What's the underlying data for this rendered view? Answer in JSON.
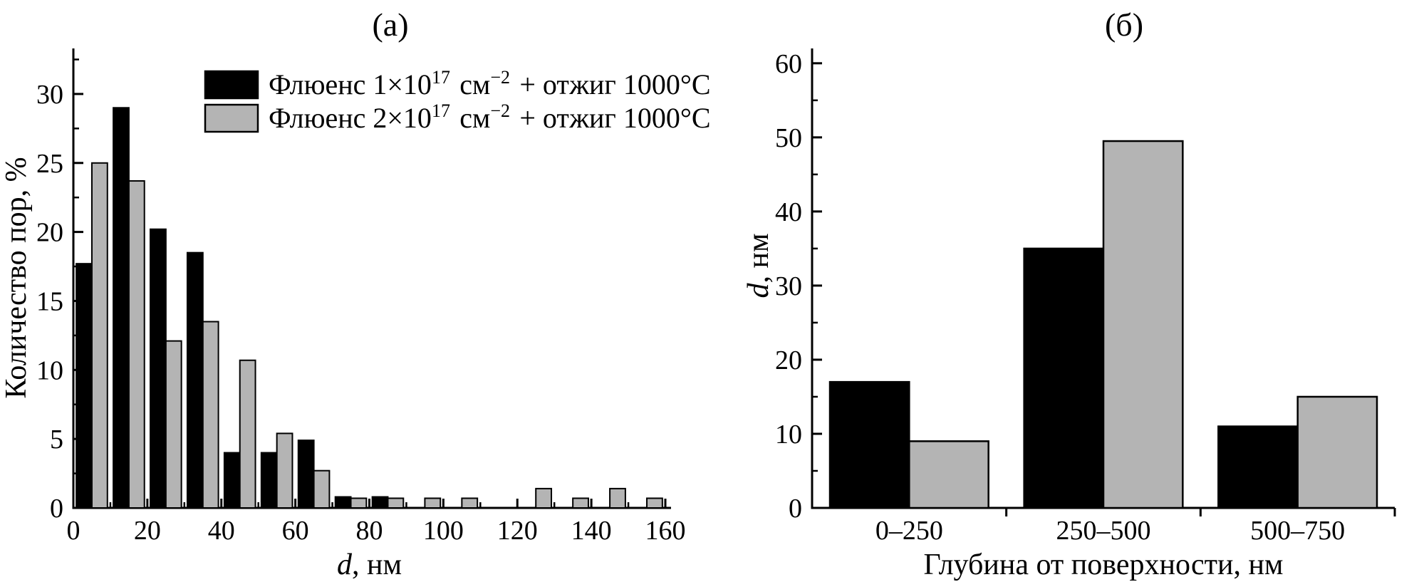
{
  "figure": {
    "background": "#ffffff",
    "panel_titles": [
      "(а)",
      "(б)"
    ]
  },
  "chart_data": [
    {
      "type": "bar",
      "panel": "a",
      "title": "(а)",
      "xlabel_italic": "d",
      "xlabel_rest": ", нм",
      "ylabel": "Количество пор, %",
      "xlim": [
        0,
        160
      ],
      "ylim": [
        0,
        33.3
      ],
      "x_major_ticks": [
        0,
        20,
        40,
        60,
        80,
        100,
        120,
        140,
        160
      ],
      "x_minor_tick_step": 10,
      "y_major_ticks": [
        0,
        5,
        10,
        15,
        20,
        25,
        30
      ],
      "y_minor_tick_step": 2.5,
      "grid": false,
      "legend_position": "top-right",
      "bin_width": 10,
      "bin_starts": [
        0,
        10,
        20,
        30,
        40,
        50,
        60,
        70,
        80,
        90,
        100,
        110,
        120,
        130,
        140,
        150
      ],
      "series": [
        {
          "name": "Флюенс 1×10¹⁷ см⁻² + отжиг 1000°C",
          "name_parts": [
            {
              "t": "Флюенс 1×10"
            },
            {
              "t": "17",
              "sup": true
            },
            {
              "t": " см"
            },
            {
              "t": "−2",
              "sup": true
            },
            {
              "t": " + отжиг 1000°C"
            }
          ],
          "color": "#000000",
          "values": [
            17.7,
            29.0,
            20.2,
            18.5,
            4.0,
            4.0,
            4.9,
            0.8,
            0.8,
            0,
            0,
            0,
            0,
            0,
            0,
            0
          ]
        },
        {
          "name": "Флюенс 2×10¹⁷ см⁻² + отжиг 1000°C",
          "name_parts": [
            {
              "t": "Флюенс 2×10"
            },
            {
              "t": "17",
              "sup": true
            },
            {
              "t": " см"
            },
            {
              "t": "−2",
              "sup": true
            },
            {
              "t": " + отжиг 1000°C"
            }
          ],
          "color": "#b4b4b4",
          "values": [
            25.0,
            23.7,
            12.1,
            13.5,
            10.7,
            5.4,
            2.7,
            0.7,
            0.7,
            0.7,
            0.7,
            0,
            1.4,
            0.7,
            1.4,
            0.7
          ]
        }
      ]
    },
    {
      "type": "bar",
      "panel": "b",
      "title": "(б)",
      "xlabel": "Глубина от поверхности, нм",
      "ylabel_italic": "d",
      "ylabel_rest": ", нм",
      "ylim": [
        0,
        62
      ],
      "y_major_ticks": [
        0,
        10,
        20,
        30,
        40,
        50,
        60
      ],
      "y_minor_tick_step": 5,
      "grid": false,
      "legend_position": "none",
      "categories": [
        "0–250",
        "250–500",
        "500–750"
      ],
      "series": [
        {
          "name": "Флюенс 1×10¹⁷ см⁻² + отжиг 1000°C",
          "color": "#000000",
          "values": [
            17,
            35,
            11
          ]
        },
        {
          "name": "Флюенс 2×10¹⁷ см⁻² + отжиг 1000°C",
          "color": "#b4b4b4",
          "values": [
            9,
            49.5,
            15
          ]
        }
      ]
    }
  ],
  "style": {
    "axis_color": "#000000",
    "bar_black": "#000000",
    "bar_gray": "#b4b4b4",
    "bar_stroke": "#000000"
  }
}
